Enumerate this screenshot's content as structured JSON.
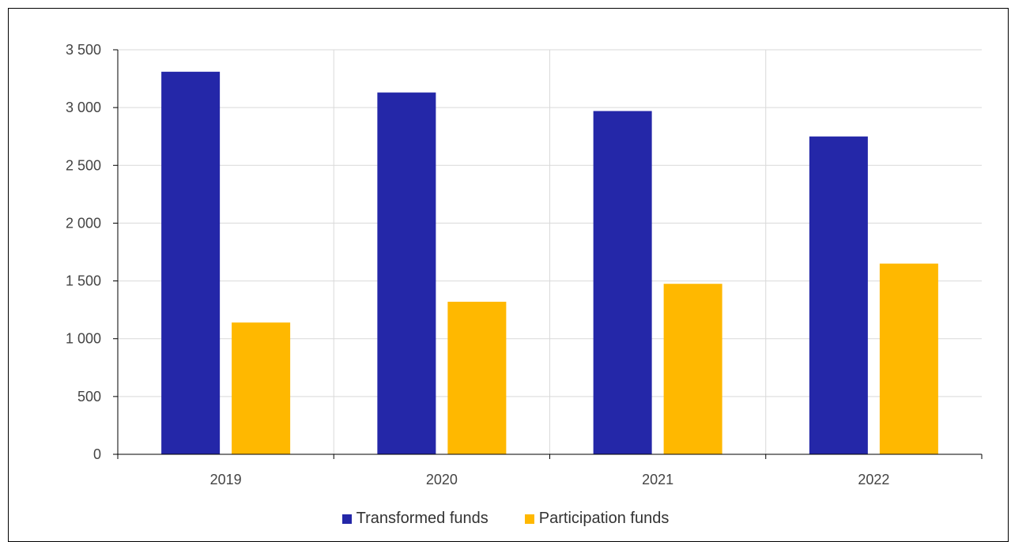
{
  "chart_data": {
    "type": "bar",
    "title": "",
    "xlabel": "",
    "ylabel": "",
    "categories": [
      "2019",
      "2020",
      "2021",
      "2022"
    ],
    "series": [
      {
        "name": "Transformed funds",
        "color": "#2427A8",
        "values": [
          3310,
          3130,
          2970,
          2750
        ]
      },
      {
        "name": "Participation funds",
        "color": "#FFB800",
        "values": [
          1140,
          1320,
          1475,
          1650
        ]
      }
    ],
    "ylim": [
      0,
      3500
    ],
    "yticks": [
      0,
      500,
      1000,
      1500,
      2000,
      2500,
      3000,
      3500
    ],
    "ytick_labels": [
      "0",
      "500",
      "1 000",
      "1 500",
      "2 000",
      "2 500",
      "3 000",
      "3 500"
    ],
    "grid": true,
    "legend_position": "bottom-center"
  }
}
